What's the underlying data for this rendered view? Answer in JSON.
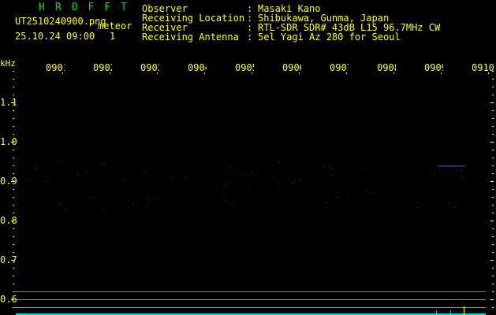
{
  "app_title": "HROFFT",
  "file_name": "UT2510240900.png",
  "mode": "meteor",
  "datetime": "25.10.24 09:00",
  "count": "1",
  "info": [
    {
      "label": "Observer",
      "value": "Masaki Kano"
    },
    {
      "label": "Receiving Location",
      "value": "Shibukawa, Gunma, Japan"
    },
    {
      "label": "Receiver",
      "value": "RTL-SDR SDR# 43dB L15 96.7MHz CW"
    },
    {
      "label": "Receiving Antenna",
      "value": "5el Yagi Az 280 for Seoul"
    }
  ],
  "y_unit": "kHz",
  "y_ticks": [
    "1.1",
    "1.0",
    "0.9",
    "0.8",
    "0.7",
    "0.6"
  ],
  "time_labels": [
    "0901",
    "0902",
    "0903",
    "0904",
    "0905",
    "0906",
    "0907",
    "0908",
    "0909",
    "0910"
  ],
  "colors": {
    "text": "#ffff00",
    "title": "#00e000",
    "trace": "#00e0e0",
    "grid": "#888888"
  }
}
